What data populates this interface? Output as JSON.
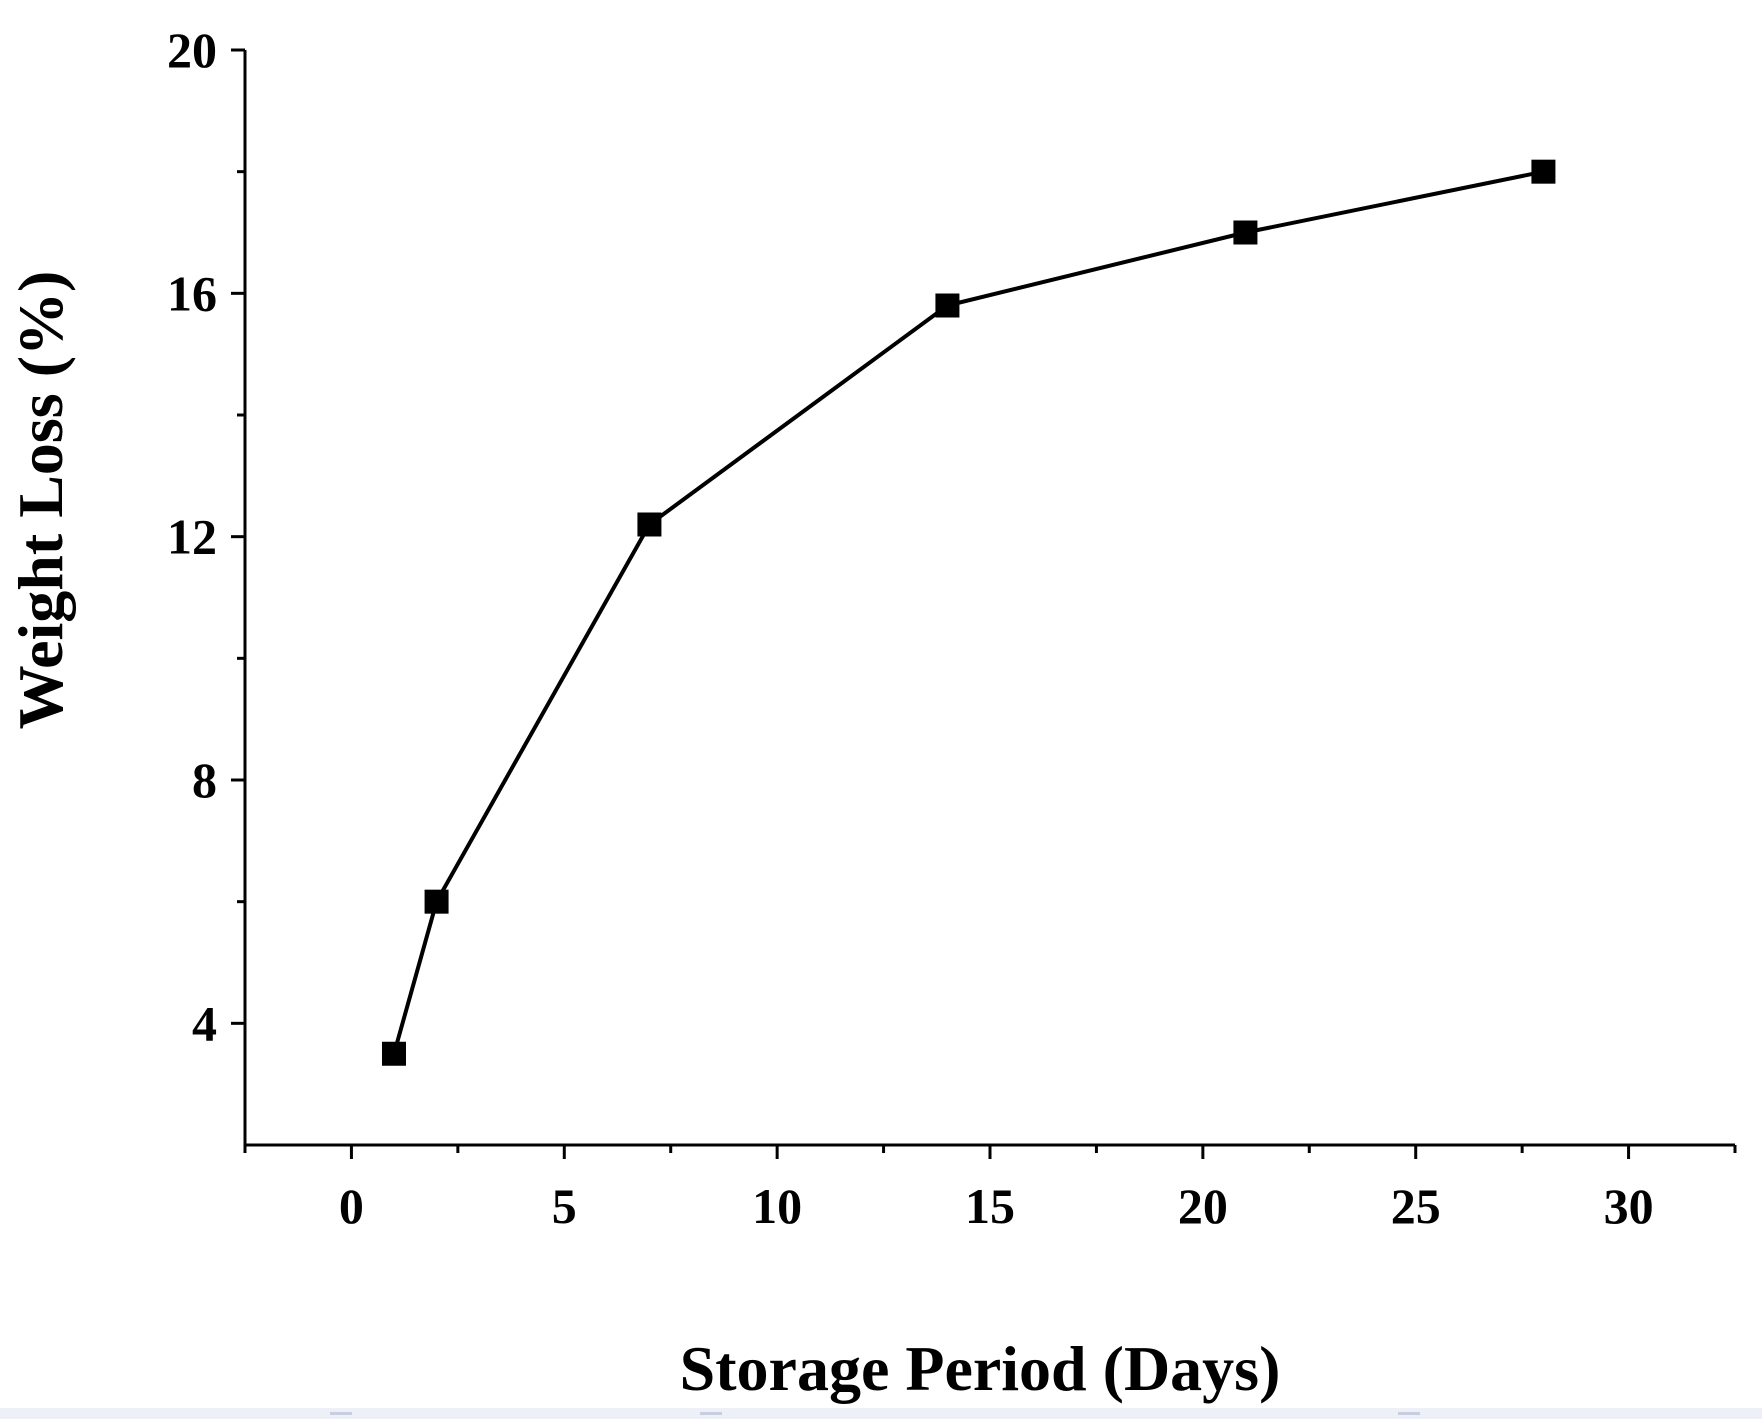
{
  "chart_data": {
    "type": "line",
    "xlabel": "Storage Period (Days)",
    "ylabel": "Weight Loss (%)",
    "xlim": [
      -2.5,
      32.5
    ],
    "ylim": [
      2,
      20
    ],
    "xticks": [
      0,
      5,
      10,
      15,
      20,
      25,
      30
    ],
    "xtick_labels": [
      "0",
      "5",
      "10",
      "15",
      "20",
      "25",
      "30"
    ],
    "yticks": [
      4,
      8,
      12,
      16,
      20
    ],
    "ytick_labels": [
      "4",
      "8",
      "12",
      "16",
      "20"
    ],
    "grid": false,
    "marker": "square",
    "series": [
      {
        "x": [
          1,
          2,
          7,
          14,
          21,
          28
        ],
        "values": [
          3.5,
          6.0,
          12.2,
          15.8,
          17.0,
          18.0
        ]
      }
    ]
  }
}
